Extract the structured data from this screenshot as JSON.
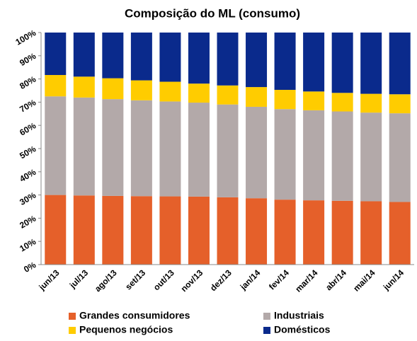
{
  "chart_data": {
    "type": "stacked_bar",
    "title": "Composição do ML (consumo)",
    "categories": [
      "jun/13",
      "jul/13",
      "ago/13",
      "set/13",
      "out/13",
      "nov/13",
      "dez/13",
      "jan/14",
      "fev/14",
      "mar/14",
      "abr/14",
      "mai/14",
      "jun/14"
    ],
    "series": [
      {
        "name": "Grandes consumidores",
        "color": "#e5602a",
        "values": [
          30.0,
          29.8,
          29.6,
          29.5,
          29.4,
          29.3,
          29.0,
          28.6,
          28.0,
          27.7,
          27.5,
          27.3,
          27.0
        ]
      },
      {
        "name": "Industriais",
        "color": "#b3a9a9",
        "values": [
          42.5,
          42.2,
          41.7,
          41.3,
          40.9,
          40.5,
          40.0,
          39.4,
          39.0,
          38.8,
          38.5,
          38.2,
          38.2
        ]
      },
      {
        "name": "Pequenos negócios",
        "color": "#ffcc00",
        "values": [
          9.2,
          9.0,
          9.0,
          8.6,
          8.5,
          8.2,
          8.2,
          8.5,
          8.3,
          8.1,
          8.0,
          8.1,
          8.2
        ]
      },
      {
        "name": "Domésticos",
        "color": "#0a2a8c",
        "values": [
          18.3,
          19.0,
          19.7,
          20.6,
          21.2,
          22.0,
          22.8,
          23.5,
          24.7,
          25.4,
          26.0,
          26.4,
          26.6
        ]
      }
    ],
    "ylim": [
      0,
      100
    ],
    "yticks": [
      {
        "value": 0,
        "label": "0%"
      },
      {
        "value": 10,
        "label": "10%"
      },
      {
        "value": 20,
        "label": "20%"
      },
      {
        "value": 30,
        "label": "30%"
      },
      {
        "value": 40,
        "label": "40%"
      },
      {
        "value": 50,
        "label": "50%"
      },
      {
        "value": 60,
        "label": "60%"
      },
      {
        "value": 70,
        "label": "70%"
      },
      {
        "value": 80,
        "label": "80%"
      },
      {
        "value": 90,
        "label": "90%"
      },
      {
        "value": 100,
        "label": "100%"
      }
    ],
    "grid": false
  }
}
